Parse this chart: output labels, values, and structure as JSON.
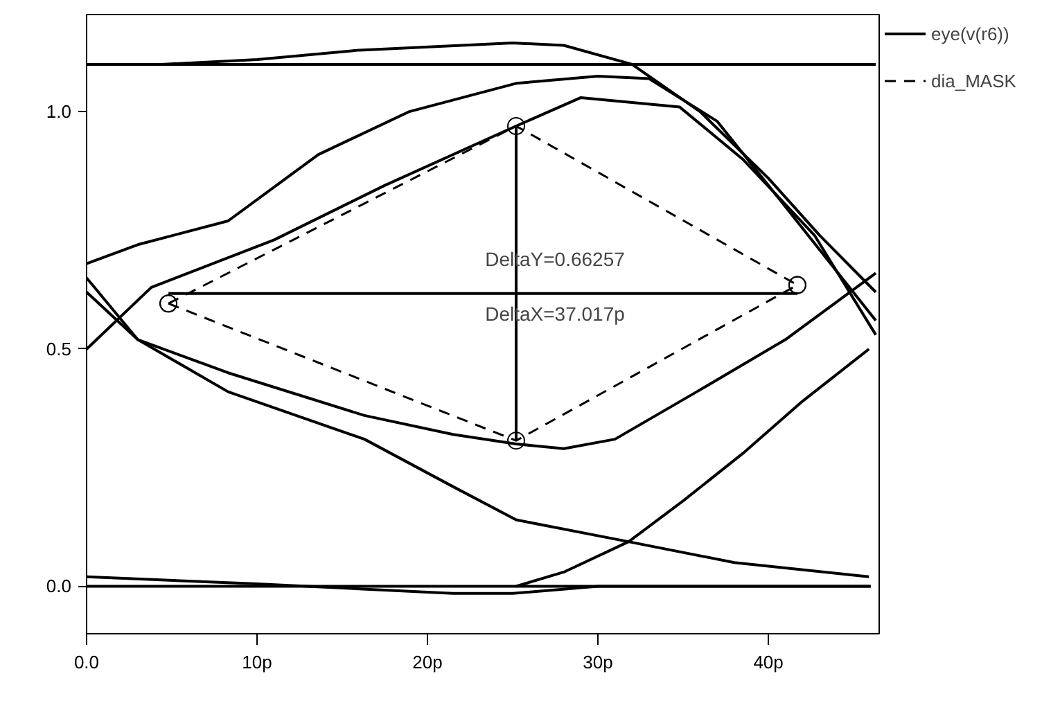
{
  "chart_data": {
    "type": "line",
    "xlim": [
      0,
      46.5
    ],
    "ylim": [
      -0.1,
      1.205
    ],
    "xticks": [
      {
        "value": 0,
        "label": "0.0"
      },
      {
        "value": 10,
        "label": "10p"
      },
      {
        "value": 20,
        "label": "20p"
      },
      {
        "value": 30,
        "label": "30p"
      },
      {
        "value": 40,
        "label": "40p"
      }
    ],
    "yticks": [
      {
        "value": 0,
        "label": "0.0"
      },
      {
        "value": 0.5,
        "label": "0.5"
      },
      {
        "value": 1,
        "label": "1.0"
      }
    ],
    "grid": false,
    "legend": "right",
    "annotations": [
      {
        "text": "DeltaY=0.66257",
        "x": 25.2,
        "y": 0.69
      },
      {
        "text": "DeltaX=37.017p",
        "x": 25.2,
        "y": 0.575
      }
    ],
    "series": [
      {
        "name": "eye(v(r6))",
        "color": "#000000",
        "line_style": "solid",
        "x": [
          0,
          4.4,
          10,
          16,
          22,
          25,
          28,
          32,
          36,
          40,
          43,
          46.3
        ],
        "values": [
          1.1,
          1.1,
          1.11,
          1.13,
          1.14,
          1.145,
          1.14,
          1.1,
          1.0,
          0.86,
          0.74,
          0.62
        ]
      },
      {
        "color": "#000000",
        "line_style": "solid",
        "x": [
          0,
          46.3
        ],
        "values": [
          1.1,
          1.1
        ]
      },
      {
        "color": "#000000",
        "line_style": "solid",
        "x": [
          0,
          3,
          8.3,
          13.6,
          18.9,
          25.2,
          30,
          33,
          37,
          41,
          46.3
        ],
        "values": [
          0.68,
          0.72,
          0.77,
          0.91,
          1.0,
          1.06,
          1.075,
          1.07,
          0.98,
          0.8,
          0.56
        ]
      },
      {
        "color": "#000000",
        "line_style": "solid",
        "x": [
          0,
          3.8,
          11,
          17.5,
          25.2,
          29,
          34.8,
          38.5,
          42.7,
          46.3
        ],
        "values": [
          0.5,
          0.63,
          0.73,
          0.845,
          0.97,
          1.03,
          1.01,
          0.9,
          0.74,
          0.53
        ]
      },
      {
        "color": "#000000",
        "line_style": "solid",
        "x": [
          0,
          3,
          8.3,
          16.3,
          21.5,
          25.2,
          31.8,
          38,
          45.9
        ],
        "values": [
          0.65,
          0.52,
          0.41,
          0.31,
          0.21,
          0.14,
          0.094,
          0.05,
          0.02
        ]
      },
      {
        "color": "#000000",
        "line_style": "solid",
        "x": [
          0,
          3,
          8.3,
          16.3,
          21.5,
          25.2,
          28,
          31,
          35.8,
          41,
          46.3
        ],
        "values": [
          0.62,
          0.52,
          0.45,
          0.36,
          0.32,
          0.3,
          0.29,
          0.31,
          0.41,
          0.52,
          0.66
        ]
      },
      {
        "color": "#000000",
        "line_style": "solid",
        "x": [
          0,
          10,
          21.5,
          25,
          30,
          46
        ],
        "values": [
          0.02,
          0.005,
          -0.015,
          -0.015,
          0.0,
          0.0
        ]
      },
      {
        "color": "#000000",
        "line_style": "solid",
        "x": [
          25.2,
          28,
          31.8,
          35,
          38.5,
          42,
          45.9
        ],
        "values": [
          0.0,
          0.03,
          0.094,
          0.18,
          0.28,
          0.39,
          0.5
        ]
      },
      {
        "color": "#000000",
        "line_style": "solid",
        "x": [
          0,
          46
        ],
        "values": [
          0,
          0
        ]
      },
      {
        "color": "#000000",
        "line_style": "solid",
        "x": [
          4.8,
          41.7
        ],
        "values": [
          0.617,
          0.617
        ]
      },
      {
        "color": "#000000",
        "line_style": "solid",
        "x": [
          25.2,
          25.2
        ],
        "values": [
          0.307,
          0.97
        ]
      },
      {
        "name": "dia_MASK",
        "color": "#000000",
        "line_style": "dashed",
        "marker": "circle",
        "x": [
          4.8,
          25.2,
          41.7
        ],
        "values": [
          0.596,
          0.97,
          0.635
        ]
      },
      {
        "color": "#000000",
        "line_style": "dashed",
        "marker": "circle",
        "x": [
          4.8,
          25.2,
          41.7
        ],
        "values": [
          0.596,
          0.307,
          0.635
        ]
      }
    ]
  }
}
